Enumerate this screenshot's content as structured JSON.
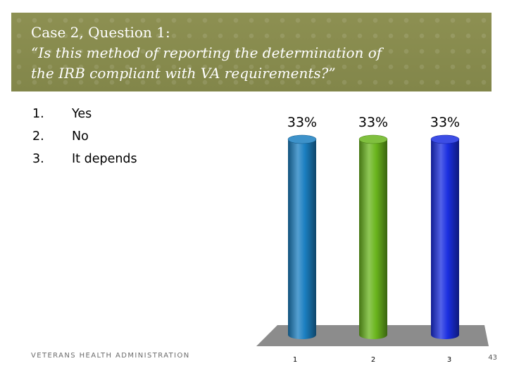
{
  "title": {
    "line1": "Case 2, Question 1:",
    "line2": "“Is this method of reporting the determination of",
    "line3": "the IRB compliant with VA requirements?”"
  },
  "answers": [
    {
      "number": "1.",
      "label": "Yes"
    },
    {
      "number": "2.",
      "label": "No"
    },
    {
      "number": "3.",
      "label": "It depends"
    }
  ],
  "footer": "VETERANS HEALTH ADMINISTRATION",
  "page_number": "43",
  "colors": {
    "banner": "#8a8d4f",
    "bar_1": "#1b7fc1",
    "bar_2": "#6ab51d",
    "bar_3": "#1a2ee0",
    "floor": "#8c8c8c"
  },
  "chart_data": {
    "type": "bar",
    "categories": [
      "1",
      "2",
      "3"
    ],
    "values": [
      33,
      33,
      33
    ],
    "data_labels": [
      "33%",
      "33%",
      "33%"
    ],
    "ylim": [
      0,
      33
    ],
    "grid": false,
    "style": "3d-cylinder"
  }
}
